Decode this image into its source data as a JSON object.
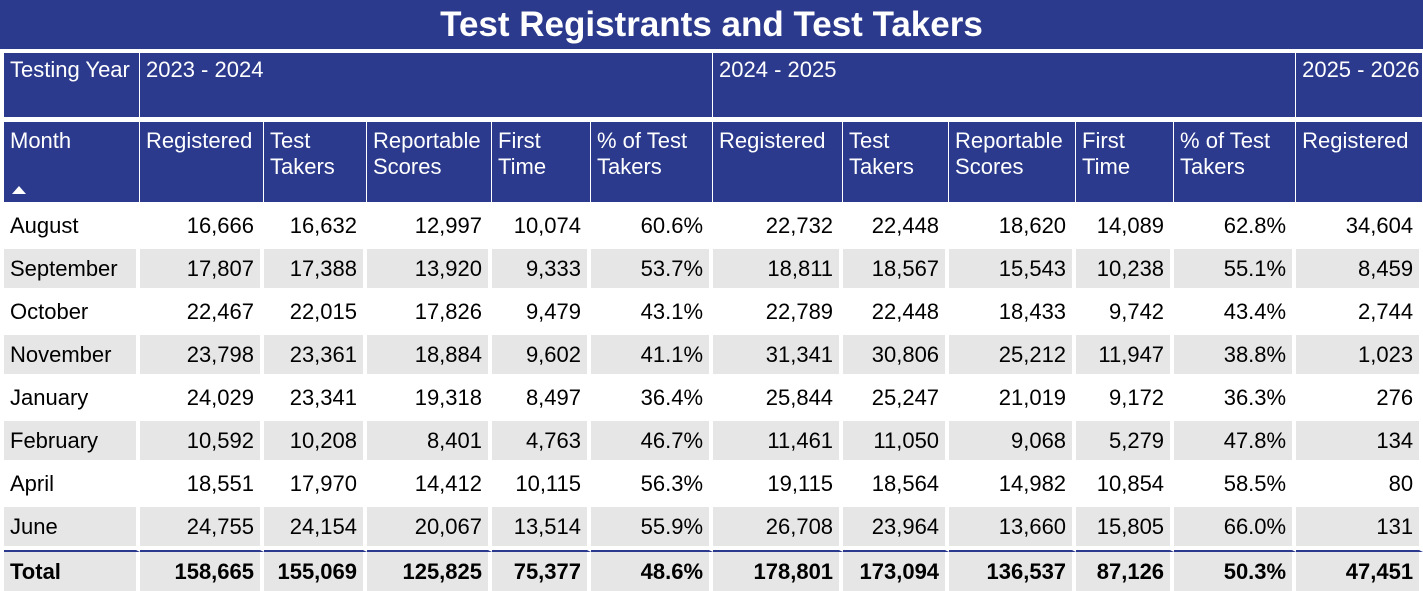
{
  "title": "Test Registrants and Test Takers",
  "header": {
    "testing_year_label": "Testing Year",
    "month_label": "Month",
    "years": [
      "2023 - 2024",
      "2024 - 2025",
      "2025 - 2026"
    ],
    "columns": [
      "Registered",
      "Test Takers",
      "Reportable Scores",
      "First Time",
      "% of Test Takers"
    ]
  },
  "rows": [
    {
      "month": "August",
      "y1": [
        "16,666",
        "16,632",
        "12,997",
        "10,074",
        "60.6%"
      ],
      "y2": [
        "22,732",
        "22,448",
        "18,620",
        "14,089",
        "62.8%"
      ],
      "y3": "34,604"
    },
    {
      "month": "September",
      "y1": [
        "17,807",
        "17,388",
        "13,920",
        "9,333",
        "53.7%"
      ],
      "y2": [
        "18,811",
        "18,567",
        "15,543",
        "10,238",
        "55.1%"
      ],
      "y3": "8,459"
    },
    {
      "month": "October",
      "y1": [
        "22,467",
        "22,015",
        "17,826",
        "9,479",
        "43.1%"
      ],
      "y2": [
        "22,789",
        "22,448",
        "18,433",
        "9,742",
        "43.4%"
      ],
      "y3": "2,744"
    },
    {
      "month": "November",
      "y1": [
        "23,798",
        "23,361",
        "18,884",
        "9,602",
        "41.1%"
      ],
      "y2": [
        "31,341",
        "30,806",
        "25,212",
        "11,947",
        "38.8%"
      ],
      "y3": "1,023"
    },
    {
      "month": "January",
      "y1": [
        "24,029",
        "23,341",
        "19,318",
        "8,497",
        "36.4%"
      ],
      "y2": [
        "25,844",
        "25,247",
        "21,019",
        "9,172",
        "36.3%"
      ],
      "y3": "276"
    },
    {
      "month": "February",
      "y1": [
        "10,592",
        "10,208",
        "8,401",
        "4,763",
        "46.7%"
      ],
      "y2": [
        "11,461",
        "11,050",
        "9,068",
        "5,279",
        "47.8%"
      ],
      "y3": "134"
    },
    {
      "month": "April",
      "y1": [
        "18,551",
        "17,970",
        "14,412",
        "10,115",
        "56.3%"
      ],
      "y2": [
        "19,115",
        "18,564",
        "14,982",
        "10,854",
        "58.5%"
      ],
      "y3": "80"
    },
    {
      "month": "June",
      "y1": [
        "24,755",
        "24,154",
        "20,067",
        "13,514",
        "55.9%"
      ],
      "y2": [
        "26,708",
        "23,964",
        "13,660",
        "15,805",
        "66.0%"
      ],
      "y3": "131"
    }
  ],
  "total": {
    "label": "Total",
    "y1": [
      "158,665",
      "155,069",
      "125,825",
      "75,377",
      "48.6%"
    ],
    "y2": [
      "178,801",
      "173,094",
      "136,537",
      "87,126",
      "50.3%"
    ],
    "y3": "47,451"
  },
  "colors": {
    "header_bg": "#2b3a8c",
    "stripe": "#e6e6e6"
  },
  "icons": {
    "sort": "sort-ascending-icon"
  }
}
